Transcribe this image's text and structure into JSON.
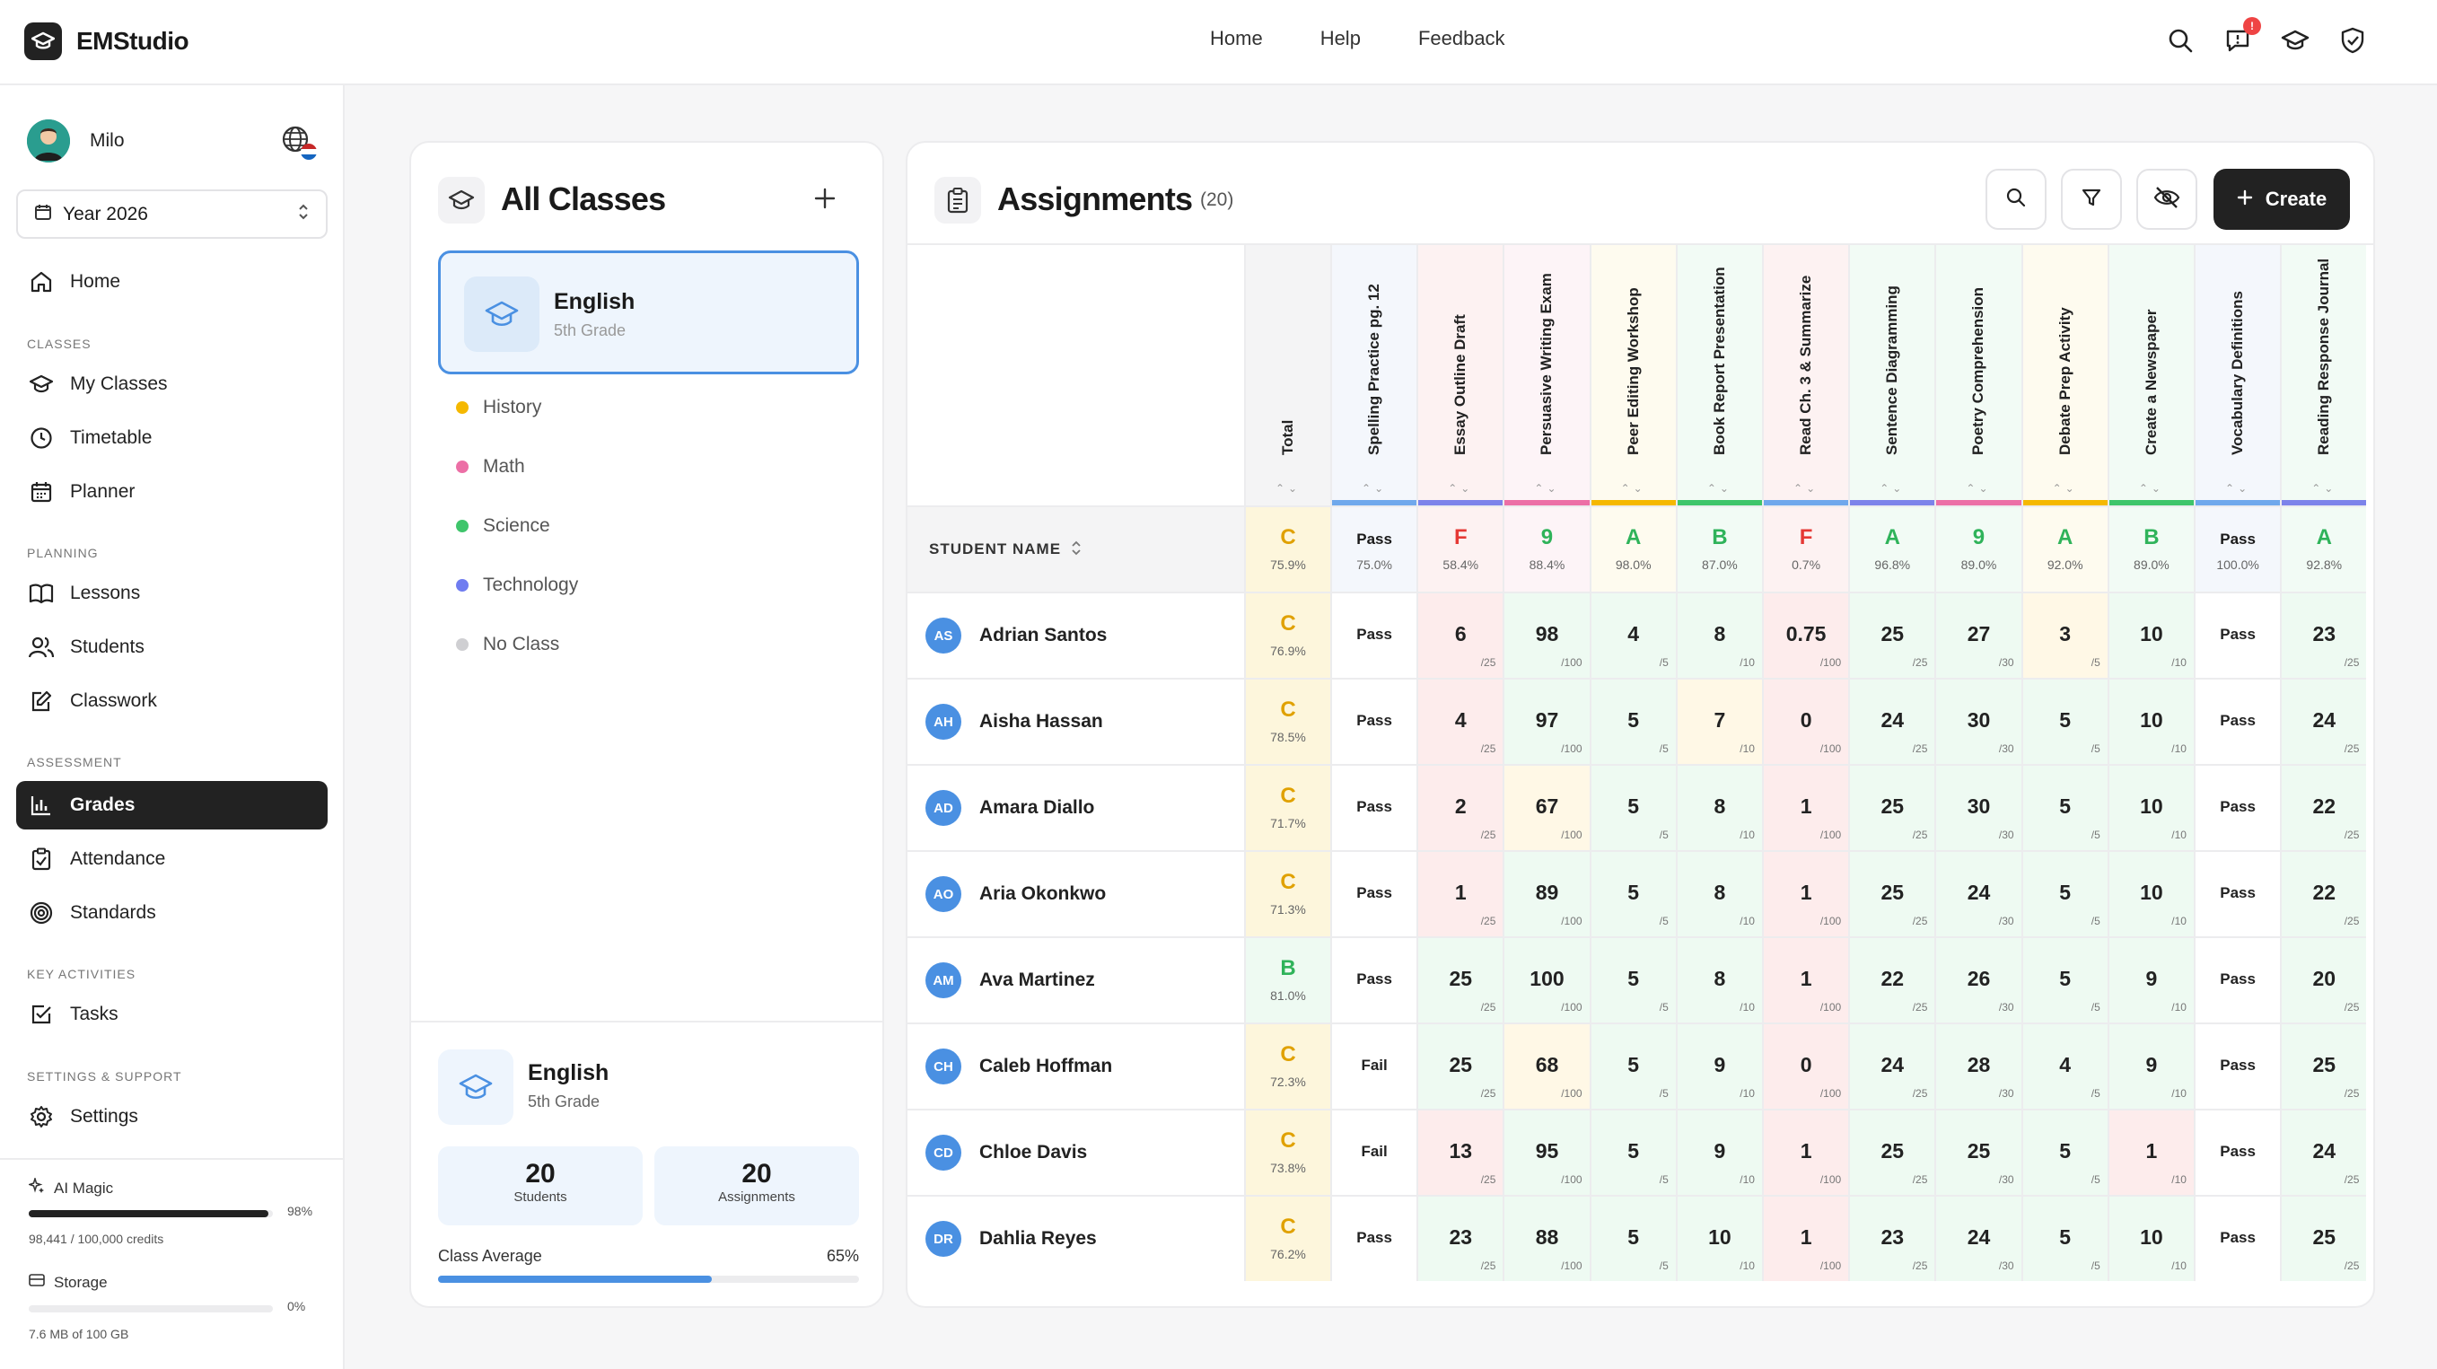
{
  "app": {
    "name": "EMStudio"
  },
  "topnav": [
    "Home",
    "Help",
    "Feedback"
  ],
  "notifications_badge": "!",
  "user": {
    "name": "Milo",
    "initials": "M"
  },
  "year_select": "Year 2026",
  "sidebar": {
    "home": "Home",
    "sec_classes": "CLASSES",
    "my_classes": "My Classes",
    "timetable": "Timetable",
    "planner": "Planner",
    "sec_planning": "PLANNING",
    "lessons": "Lessons",
    "students": "Students",
    "classwork": "Classwork",
    "sec_assessment": "ASSESSMENT",
    "grades": "Grades",
    "attendance": "Attendance",
    "standards": "Standards",
    "sec_key": "KEY ACTIVITIES",
    "tasks": "Tasks",
    "sec_settings": "SETTINGS & SUPPORT",
    "settings": "Settings"
  },
  "usage": {
    "ai_label": "AI Magic",
    "ai_pct": "98%",
    "ai_fill": 0.98,
    "ai_sub": "98,441 / 100,000 credits",
    "storage_label": "Storage",
    "storage_pct": "0%",
    "storage_fill": 0.0,
    "storage_sub": "7.6 MB of 100 GB"
  },
  "classes_panel": {
    "title": "All Classes",
    "selected": {
      "name": "English",
      "grade": "5th Grade"
    },
    "items": [
      {
        "name": "History",
        "color": "#f5b800"
      },
      {
        "name": "Math",
        "color": "#ec6fa6"
      },
      {
        "name": "Science",
        "color": "#3fc56b"
      },
      {
        "name": "Technology",
        "color": "#6f7cf0"
      },
      {
        "name": "No Class",
        "color": "#cfcfd2"
      }
    ],
    "footer": {
      "name": "English",
      "grade": "5th Grade",
      "students_count": "20",
      "students_label": "Students",
      "assignments_count": "20",
      "assignments_label": "Assignments",
      "avg_label": "Class Average",
      "avg_value": "65%",
      "avg_fill": 0.65
    }
  },
  "assignments_panel": {
    "title": "Assignments",
    "count": "(20)",
    "create_label": "Create",
    "student_name_header": "STUDENT NAME",
    "total_header": "Total",
    "columns": [
      {
        "name": "Spelling Practice pg. 12",
        "stripe": "#6fa8ec",
        "bg": "#f4f7fc",
        "summary": "Pass",
        "summary_pct": "75.0%",
        "max": ""
      },
      {
        "name": "Essay Outline Draft",
        "stripe": "#7c83ea",
        "bg": "#fdf2f2",
        "summary": "F",
        "summary_pct": "58.4%",
        "max": "/25"
      },
      {
        "name": "Persuasive Writing Exam",
        "stripe": "#ec6fa6",
        "bg": "#fdf4f7",
        "summary": "9",
        "summary_pct": "88.4%",
        "max": "/100"
      },
      {
        "name": "Peer Editing Workshop",
        "stripe": "#f5b800",
        "bg": "#fefbef",
        "summary": "A",
        "summary_pct": "98.0%",
        "max": "/5"
      },
      {
        "name": "Book Report Presentation",
        "stripe": "#3fc56b",
        "bg": "#f2fbf5",
        "summary": "B",
        "summary_pct": "87.0%",
        "max": "/10"
      },
      {
        "name": "Read Ch. 3 & Summarize",
        "stripe": "#6fa8ec",
        "bg": "#fdf2f2",
        "summary": "F",
        "summary_pct": "0.7%",
        "max": "/100"
      },
      {
        "name": "Sentence Diagramming",
        "stripe": "#7c83ea",
        "bg": "#f2fbf5",
        "summary": "A",
        "summary_pct": "96.8%",
        "max": "/25"
      },
      {
        "name": "Poetry Comprehension",
        "stripe": "#ec6fa6",
        "bg": "#f2fbf5",
        "summary": "9",
        "summary_pct": "89.0%",
        "max": "/30"
      },
      {
        "name": "Debate Prep Activity",
        "stripe": "#f5b800",
        "bg": "#fefbef",
        "summary": "A",
        "summary_pct": "92.0%",
        "max": "/5"
      },
      {
        "name": "Create a Newspaper",
        "stripe": "#3fc56b",
        "bg": "#f2fbf5",
        "summary": "B",
        "summary_pct": "89.0%",
        "max": "/10"
      },
      {
        "name": "Vocabulary Definitions",
        "stripe": "#6fa8ec",
        "bg": "#f4f7fc",
        "summary": "Pass",
        "summary_pct": "100.0%",
        "max": ""
      },
      {
        "name": "Reading Response Journal",
        "stripe": "#7c83ea",
        "bg": "#f2fbf5",
        "summary": "A",
        "summary_pct": "92.8%",
        "max": "/25"
      }
    ],
    "total_summary": {
      "grade": "C",
      "pct": "75.9%"
    },
    "students": [
      {
        "initials": "AS",
        "name": "Adrian Santos",
        "grade": "C",
        "pct": "76.9%",
        "scores": [
          "Pass",
          "6",
          "98",
          "4",
          "8",
          "0.75",
          "25",
          "27",
          "3",
          "10",
          "Pass",
          "23"
        ]
      },
      {
        "initials": "AH",
        "name": "Aisha Hassan",
        "grade": "C",
        "pct": "78.5%",
        "scores": [
          "Pass",
          "4",
          "97",
          "5",
          "7",
          "0",
          "24",
          "30",
          "5",
          "10",
          "Pass",
          "24"
        ]
      },
      {
        "initials": "AD",
        "name": "Amara Diallo",
        "grade": "C",
        "pct": "71.7%",
        "scores": [
          "Pass",
          "2",
          "67",
          "5",
          "8",
          "1",
          "25",
          "30",
          "5",
          "10",
          "Pass",
          "22"
        ]
      },
      {
        "initials": "AO",
        "name": "Aria Okonkwo",
        "grade": "C",
        "pct": "71.3%",
        "scores": [
          "Pass",
          "1",
          "89",
          "5",
          "8",
          "1",
          "25",
          "24",
          "5",
          "10",
          "Pass",
          "22"
        ]
      },
      {
        "initials": "AM",
        "name": "Ava Martinez",
        "grade": "B",
        "pct": "81.0%",
        "scores": [
          "Pass",
          "25",
          "100",
          "5",
          "8",
          "1",
          "22",
          "26",
          "5",
          "9",
          "Pass",
          "20"
        ]
      },
      {
        "initials": "CH",
        "name": "Caleb Hoffman",
        "grade": "C",
        "pct": "72.3%",
        "scores": [
          "Fail",
          "25",
          "68",
          "5",
          "9",
          "0",
          "24",
          "28",
          "4",
          "9",
          "Pass",
          "25"
        ]
      },
      {
        "initials": "CD",
        "name": "Chloe Davis",
        "grade": "C",
        "pct": "73.8%",
        "scores": [
          "Fail",
          "13",
          "95",
          "5",
          "9",
          "1",
          "25",
          "25",
          "5",
          "1",
          "Pass",
          "24"
        ]
      },
      {
        "initials": "DR",
        "name": "Dahlia Reyes",
        "grade": "C",
        "pct": "76.2%",
        "scores": [
          "Pass",
          "23",
          "88",
          "5",
          "10",
          "1",
          "23",
          "24",
          "5",
          "10",
          "Pass",
          "25"
        ]
      }
    ]
  }
}
